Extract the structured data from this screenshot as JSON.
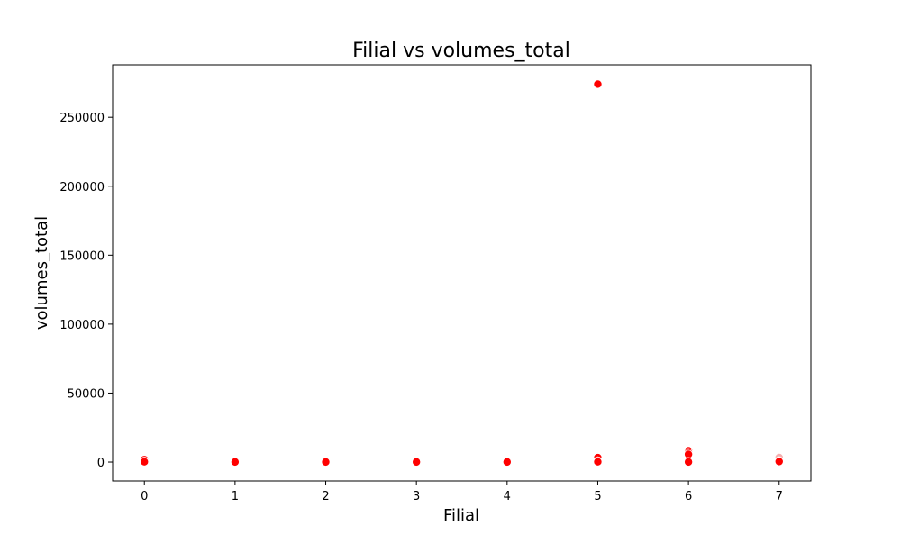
{
  "chart_data": {
    "type": "scatter",
    "title": "Filial vs volumes_total",
    "xlabel": "Filial",
    "ylabel": "volumes_total",
    "xlim": [
      -0.35,
      7.35
    ],
    "ylim": [
      -13700,
      288000
    ],
    "xticks": [
      0,
      1,
      2,
      3,
      4,
      5,
      6,
      7
    ],
    "yticks": [
      0,
      50000,
      100000,
      150000,
      200000,
      250000
    ],
    "grid": false,
    "legend": "none",
    "colors": {
      "point": "#ff0000",
      "point_faint": "#f4b0b0",
      "point_edge": "#ffffff"
    },
    "points": [
      {
        "x": 0,
        "y": 1800
      },
      {
        "x": 0,
        "y": 600
      },
      {
        "x": 0,
        "y": 200
      },
      {
        "x": 1,
        "y": 300
      },
      {
        "x": 1,
        "y": 100
      },
      {
        "x": 2,
        "y": 200
      },
      {
        "x": 2,
        "y": 100
      },
      {
        "x": 3,
        "y": 300
      },
      {
        "x": 3,
        "y": 100
      },
      {
        "x": 4,
        "y": 200
      },
      {
        "x": 4,
        "y": 100
      },
      {
        "x": 5,
        "y": 274000
      },
      {
        "x": 5,
        "y": 3200
      },
      {
        "x": 5,
        "y": 800
      },
      {
        "x": 5,
        "y": 200
      },
      {
        "x": 6,
        "y": 8200
      },
      {
        "x": 6,
        "y": 6800
      },
      {
        "x": 6,
        "y": 5600
      },
      {
        "x": 6,
        "y": 300
      },
      {
        "x": 6,
        "y": 100
      },
      {
        "x": 7,
        "y": 3300,
        "faint": true
      },
      {
        "x": 7,
        "y": 900
      },
      {
        "x": 7,
        "y": 400
      }
    ]
  }
}
